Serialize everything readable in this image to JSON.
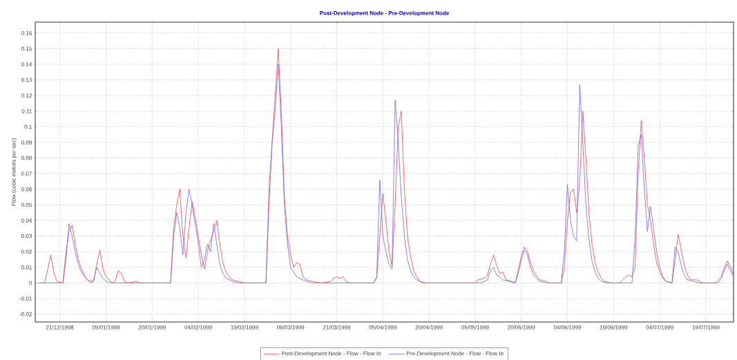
{
  "chart_data": {
    "type": "line",
    "title": "Post-Development Node - Pre-Development Node",
    "ylabel": "Flow (cubic metres per sec)",
    "xlim": [
      "1998-12-13",
      "1999-07-28"
    ],
    "xticks": [
      {
        "value": "1998-12-21",
        "label": "21/12/1998"
      },
      {
        "value": "1999-01-05",
        "label": "05/01/1999"
      },
      {
        "value": "1999-01-20",
        "label": "20/01/1999"
      },
      {
        "value": "1999-02-04",
        "label": "04/02/1999"
      },
      {
        "value": "1999-02-19",
        "label": "19/02/1999"
      },
      {
        "value": "1999-03-06",
        "label": "06/03/1999"
      },
      {
        "value": "1999-03-21",
        "label": "21/03/1999"
      },
      {
        "value": "1999-04-05",
        "label": "05/04/1999"
      },
      {
        "value": "1999-04-20",
        "label": "20/04/1999"
      },
      {
        "value": "1999-05-05",
        "label": "05/05/1999"
      },
      {
        "value": "1999-05-20",
        "label": "20/05/1999"
      },
      {
        "value": "1999-06-04",
        "label": "04/06/1999"
      },
      {
        "value": "1999-06-19",
        "label": "19/06/1999"
      },
      {
        "value": "1999-07-04",
        "label": "04/07/1999"
      },
      {
        "value": "1999-07-19",
        "label": "19/07/1999"
      }
    ],
    "ylim": [
      -0.025,
      0.167
    ],
    "yticks": [
      -0.02,
      -0.01,
      0,
      0.01,
      0.02,
      0.03,
      0.04,
      0.05,
      0.06,
      0.07,
      0.08,
      0.09,
      0.1,
      0.11,
      0.12,
      0.13,
      0.14,
      0.15,
      0.16
    ],
    "grid": true,
    "legend": "bottom",
    "marker": "none",
    "line_style": "solid",
    "series": [
      {
        "name": "Post-Development Node - Flow - Flow In",
        "color": "#ff4040",
        "x": [
          "1998-12-14",
          "1998-12-16",
          "1998-12-17",
          "1998-12-18",
          "1998-12-19",
          "1998-12-20",
          "1998-12-22",
          "1998-12-23",
          "1998-12-24",
          "1998-12-25",
          "1998-12-26",
          "1998-12-27",
          "1998-12-28",
          "1998-12-29",
          "1998-12-30",
          "1998-12-31",
          "1999-01-01",
          "1999-01-02",
          "1999-01-03",
          "1999-01-04",
          "1999-01-05",
          "1999-01-06",
          "1999-01-07",
          "1999-01-08",
          "1999-01-09",
          "1999-01-10",
          "1999-01-11",
          "1999-01-12",
          "1999-01-15",
          "1999-01-16",
          "1999-01-26",
          "1999-01-27",
          "1999-01-28",
          "1999-01-29",
          "1999-01-30",
          "1999-01-31",
          "1999-02-01",
          "1999-02-02",
          "1999-02-03",
          "1999-02-04",
          "1999-02-05",
          "1999-02-06",
          "1999-02-07",
          "1999-02-08",
          "1999-02-09",
          "1999-02-10",
          "1999-02-11",
          "1999-02-12",
          "1999-02-13",
          "1999-02-14",
          "1999-02-15",
          "1999-02-17",
          "1999-02-19",
          "1999-02-26",
          "1999-02-27",
          "1999-02-28",
          "1999-03-01",
          "1999-03-02",
          "1999-03-03",
          "1999-03-04",
          "1999-03-05",
          "1999-03-06",
          "1999-03-07",
          "1999-03-08",
          "1999-03-09",
          "1999-03-10",
          "1999-03-11",
          "1999-03-13",
          "1999-03-16",
          "1999-03-19",
          "1999-03-20",
          "1999-03-21",
          "1999-03-22",
          "1999-03-23",
          "1999-03-24",
          "1999-03-25",
          "1999-04-02",
          "1999-04-03",
          "1999-04-04",
          "1999-04-05",
          "1999-04-06",
          "1999-04-07",
          "1999-04-08",
          "1999-04-09",
          "1999-04-10",
          "1999-04-11",
          "1999-04-12",
          "1999-04-13",
          "1999-04-14",
          "1999-04-15",
          "1999-04-16",
          "1999-04-17",
          "1999-04-19",
          "1999-05-05",
          "1999-05-06",
          "1999-05-08",
          "1999-05-09",
          "1999-05-10",
          "1999-05-11",
          "1999-05-12",
          "1999-05-13",
          "1999-05-14",
          "1999-05-15",
          "1999-05-17",
          "1999-05-18",
          "1999-05-19",
          "1999-05-20",
          "1999-05-21",
          "1999-05-22",
          "1999-05-23",
          "1999-05-24",
          "1999-05-25",
          "1999-05-26",
          "1999-05-28",
          "1999-05-29",
          "1999-06-02",
          "1999-06-03",
          "1999-06-04",
          "1999-06-05",
          "1999-06-06",
          "1999-06-07",
          "1999-06-08",
          "1999-06-09",
          "1999-06-10",
          "1999-06-11",
          "1999-06-12",
          "1999-06-13",
          "1999-06-14",
          "1999-06-15",
          "1999-06-16",
          "1999-06-18",
          "1999-06-21",
          "1999-06-22",
          "1999-06-23",
          "1999-06-24",
          "1999-06-25",
          "1999-06-26",
          "1999-06-27",
          "1999-06-28",
          "1999-06-29",
          "1999-06-30",
          "1999-07-01",
          "1999-07-02",
          "1999-07-03",
          "1999-07-04",
          "1999-07-05",
          "1999-07-06",
          "1999-07-08",
          "1999-07-09",
          "1999-07-10",
          "1999-07-11",
          "1999-07-12",
          "1999-07-13",
          "1999-07-14",
          "1999-07-16",
          "1999-07-17",
          "1999-07-18",
          "1999-07-22",
          "1999-07-23",
          "1999-07-24",
          "1999-07-25",
          "1999-07-26",
          "1999-07-27",
          "1999-07-28"
        ],
        "values": [
          0,
          0,
          0.008,
          0.018,
          0.007,
          0.001,
          0,
          0.02,
          0.033,
          0.037,
          0.025,
          0.015,
          0.009,
          0.005,
          0.002,
          0,
          0.001,
          0.012,
          0.021,
          0.009,
          0.004,
          0.002,
          0,
          0.001,
          0.008,
          0.006,
          0.001,
          0,
          0.001,
          0,
          0,
          0.035,
          0.05,
          0.06,
          0.03,
          0.016,
          0.035,
          0.052,
          0.042,
          0.03,
          0.018,
          0.009,
          0.02,
          0.028,
          0.033,
          0.04,
          0.025,
          0.013,
          0.007,
          0.004,
          0.002,
          0.001,
          0,
          0,
          0.06,
          0.09,
          0.12,
          0.15,
          0.11,
          0.055,
          0.03,
          0.018,
          0.01,
          0.013,
          0.012,
          0.004,
          0.002,
          0.001,
          0,
          0.001,
          0.003,
          0.004,
          0.003,
          0.004,
          0.001,
          0,
          0,
          0.003,
          0.03,
          0.057,
          0.04,
          0.02,
          0.011,
          0.05,
          0.1,
          0.11,
          0.06,
          0.03,
          0.017,
          0.008,
          0.004,
          0.001,
          0,
          0,
          0.002,
          0.003,
          0.005,
          0.012,
          0.018,
          0.011,
          0.006,
          0.007,
          0.002,
          0.001,
          0,
          0.008,
          0.017,
          0.023,
          0.02,
          0.013,
          0.008,
          0.004,
          0.002,
          0.001,
          0,
          0,
          0.01,
          0.04,
          0.058,
          0.06,
          0.045,
          0.065,
          0.11,
          0.08,
          0.045,
          0.025,
          0.013,
          0.007,
          0.003,
          0.001,
          0,
          0,
          0.002,
          0.004,
          0.005,
          0.004,
          0.01,
          0.07,
          0.104,
          0.08,
          0.05,
          0.04,
          0.025,
          0.013,
          0.007,
          0.003,
          0.001,
          0,
          0.015,
          0.031,
          0.021,
          0.011,
          0.005,
          0.002,
          0.002,
          0.001,
          0,
          0,
          0.002,
          0.004,
          0.01,
          0.014,
          0.01,
          0.005
        ]
      },
      {
        "name": "Pre-Development Node - Flow - Flow In",
        "color": "#6464ff",
        "x": [
          "1998-12-14",
          "1998-12-22",
          "1998-12-23",
          "1998-12-24",
          "1998-12-25",
          "1998-12-26",
          "1998-12-27",
          "1998-12-28",
          "1998-12-29",
          "1998-12-30",
          "1998-12-31",
          "1999-01-01",
          "1999-01-02",
          "1999-01-03",
          "1999-01-04",
          "1999-01-05",
          "1999-01-07",
          "1999-01-26",
          "1999-01-27",
          "1999-01-28",
          "1999-01-29",
          "1999-01-30",
          "1999-01-31",
          "1999-02-01",
          "1999-02-02",
          "1999-02-03",
          "1999-02-04",
          "1999-02-05",
          "1999-02-06",
          "1999-02-07",
          "1999-02-08",
          "1999-02-09",
          "1999-02-10",
          "1999-02-11",
          "1999-02-12",
          "1999-02-13",
          "1999-02-15",
          "1999-02-17",
          "1999-02-26",
          "1999-02-27",
          "1999-02-28",
          "1999-03-01",
          "1999-03-02",
          "1999-03-03",
          "1999-03-04",
          "1999-03-05",
          "1999-03-06",
          "1999-03-07",
          "1999-03-08",
          "1999-03-09",
          "1999-03-11",
          "1999-03-13",
          "1999-04-02",
          "1999-04-03",
          "1999-04-04",
          "1999-04-05",
          "1999-04-06",
          "1999-04-07",
          "1999-04-08",
          "1999-04-09",
          "1999-04-10",
          "1999-04-11",
          "1999-04-12",
          "1999-04-13",
          "1999-04-14",
          "1999-04-15",
          "1999-04-16",
          "1999-04-18",
          "1999-05-07",
          "1999-05-09",
          "1999-05-10",
          "1999-05-11",
          "1999-05-12",
          "1999-05-13",
          "1999-05-14",
          "1999-05-16",
          "1999-05-18",
          "1999-05-19",
          "1999-05-20",
          "1999-05-21",
          "1999-05-22",
          "1999-05-23",
          "1999-05-24",
          "1999-05-25",
          "1999-05-26",
          "1999-05-28",
          "1999-06-02",
          "1999-06-03",
          "1999-06-04",
          "1999-06-05",
          "1999-06-06",
          "1999-06-07",
          "1999-06-08",
          "1999-06-09",
          "1999-06-10",
          "1999-06-11",
          "1999-06-12",
          "1999-06-13",
          "1999-06-14",
          "1999-06-15",
          "1999-06-17",
          "1999-06-25",
          "1999-06-26",
          "1999-06-27",
          "1999-06-28",
          "1999-06-29",
          "1999-06-30",
          "1999-07-01",
          "1999-07-02",
          "1999-07-03",
          "1999-07-04",
          "1999-07-05",
          "1999-07-06",
          "1999-07-08",
          "1999-07-09",
          "1999-07-10",
          "1999-07-11",
          "1999-07-12",
          "1999-07-13",
          "1999-07-15",
          "1999-07-17",
          "1999-07-23",
          "1999-07-24",
          "1999-07-25",
          "1999-07-26",
          "1999-07-27",
          "1999-07-28"
        ],
        "values": [
          0,
          0,
          0.015,
          0.038,
          0.03,
          0.02,
          0.012,
          0.007,
          0.004,
          0.002,
          0.001,
          0.002,
          0.01,
          0.006,
          0.003,
          0.001,
          0,
          0,
          0.03,
          0.045,
          0.035,
          0.018,
          0.045,
          0.06,
          0.05,
          0.038,
          0.025,
          0.01,
          0.015,
          0.025,
          0.02,
          0.038,
          0.025,
          0.012,
          0.006,
          0.003,
          0.001,
          0,
          0,
          0.05,
          0.09,
          0.11,
          0.14,
          0.1,
          0.05,
          0.025,
          0.01,
          0.007,
          0.004,
          0.003,
          0.001,
          0,
          0,
          0.004,
          0.066,
          0.03,
          0.02,
          0.012,
          0.009,
          0.117,
          0.09,
          0.055,
          0.03,
          0.015,
          0.008,
          0.004,
          0.002,
          0,
          0,
          0.002,
          0.008,
          0.01,
          0.005,
          0.004,
          0.002,
          0.001,
          0,
          0.006,
          0.015,
          0.021,
          0.018,
          0.01,
          0.005,
          0.003,
          0.001,
          0,
          0,
          0.02,
          0.063,
          0.04,
          0.03,
          0.027,
          0.127,
          0.09,
          0.05,
          0.028,
          0.014,
          0.007,
          0.003,
          0.001,
          0,
          0,
          0.03,
          0.088,
          0.095,
          0.06,
          0.033,
          0.049,
          0.035,
          0.02,
          0.01,
          0.004,
          0.001,
          0,
          0.023,
          0.02,
          0.011,
          0.005,
          0.002,
          0.001,
          0,
          0,
          0.003,
          0.008,
          0.012,
          0.008,
          0.004
        ]
      }
    ]
  }
}
